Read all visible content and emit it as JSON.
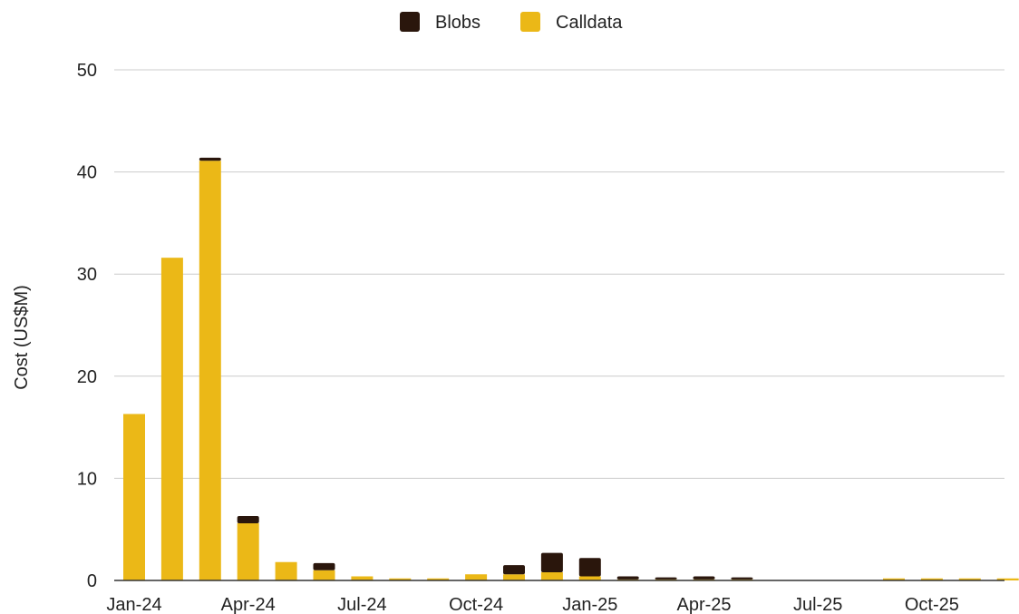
{
  "chart_data": {
    "type": "bar",
    "stacked": true,
    "ylabel": "Cost (US$M)",
    "xlabel": "",
    "ylim": [
      0,
      50
    ],
    "yticks": [
      "0",
      "10",
      "20",
      "30",
      "40",
      "50"
    ],
    "grid": true,
    "legend_position": "top",
    "categories": [
      "Jan-24",
      "Feb-24",
      "Mar-24",
      "Apr-24",
      "May-24",
      "Jun-24",
      "Jul-24",
      "Aug-24",
      "Sep-24",
      "Oct-24",
      "Nov-24",
      "Dec-24",
      "Jan-25",
      "Feb-25",
      "Mar-25",
      "Apr-25",
      "May-25",
      "Jun-25",
      "Jul-25",
      "Aug-25",
      "Sep-25",
      "Oct-25",
      "Nov-25",
      "Dec-25"
    ],
    "x_tick_labels": [
      "Jan-24",
      "Apr-24",
      "Jul-24",
      "Oct-24",
      "Jan-25",
      "Apr-25",
      "Jul-25",
      "Oct-25"
    ],
    "series": [
      {
        "name": "Calldata",
        "color": "#EBB817",
        "values": [
          16.3,
          31.6,
          41.1,
          5.6,
          1.8,
          1.0,
          0.4,
          0.2,
          0.2,
          0.6,
          0.6,
          0.8,
          0.4,
          0.1,
          0.1,
          0.1,
          0.1,
          0.0,
          0.0,
          0.0,
          0.2,
          0.2,
          0.2,
          0.2
        ]
      },
      {
        "name": "Blobs",
        "color": "#2A160C",
        "values": [
          0.0,
          0.0,
          0.3,
          0.7,
          0.0,
          0.7,
          0.0,
          0.0,
          0.0,
          0.0,
          0.9,
          1.9,
          1.8,
          0.3,
          0.2,
          0.3,
          0.2,
          0.0,
          0.0,
          0.0,
          0.0,
          0.0,
          0.0,
          0.0
        ]
      }
    ],
    "legend": [
      {
        "name": "Blobs",
        "color": "#2A160C"
      },
      {
        "name": "Calldata",
        "color": "#EBB817"
      }
    ]
  }
}
